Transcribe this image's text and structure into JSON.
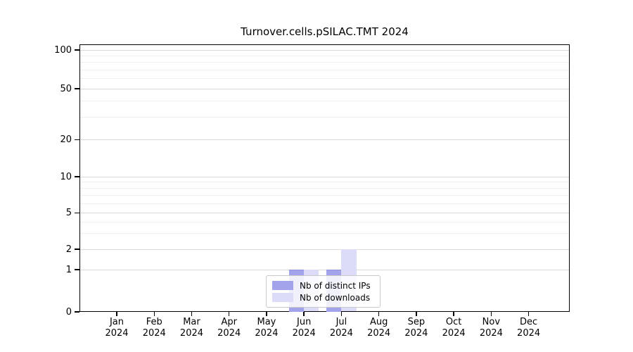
{
  "title": "Turnover.cells.pSILAC.TMT 2024",
  "colors": {
    "distinct_ips": "#a3a3ec",
    "downloads": "#dcdcf9",
    "grid_major": "#d9d9d9",
    "grid_minor": "#f0f0f0",
    "axis": "#000000"
  },
  "legend": {
    "items": [
      {
        "label": "Nb of distinct IPs",
        "color": "#a3a3ec"
      },
      {
        "label": "Nb of downloads",
        "color": "#dcdcf9"
      }
    ]
  },
  "chart_data": {
    "type": "bar",
    "title": "Turnover.cells.pSILAC.TMT 2024",
    "categories": [
      "Jan 2024",
      "Feb 2024",
      "Mar 2024",
      "Apr 2024",
      "May 2024",
      "Jun 2024",
      "Jul 2024",
      "Aug 2024",
      "Sep 2024",
      "Oct 2024",
      "Nov 2024",
      "Dec 2024"
    ],
    "series": [
      {
        "name": "Nb of distinct IPs",
        "color": "#a3a3ec",
        "values": [
          0,
          0,
          0,
          0,
          0,
          1,
          1,
          0,
          0,
          0,
          0,
          0
        ]
      },
      {
        "name": "Nb of downloads",
        "color": "#dcdcf9",
        "values": [
          0,
          0,
          0,
          0,
          0,
          1,
          2,
          0,
          0,
          0,
          0,
          0
        ]
      }
    ],
    "xlabel": "",
    "ylabel": "",
    "yscale": "symlog",
    "yticks": [
      0,
      1,
      2,
      5,
      10,
      20,
      50,
      100
    ],
    "ylim": [
      0,
      110
    ],
    "grid": true,
    "legend_position": "lower center"
  }
}
